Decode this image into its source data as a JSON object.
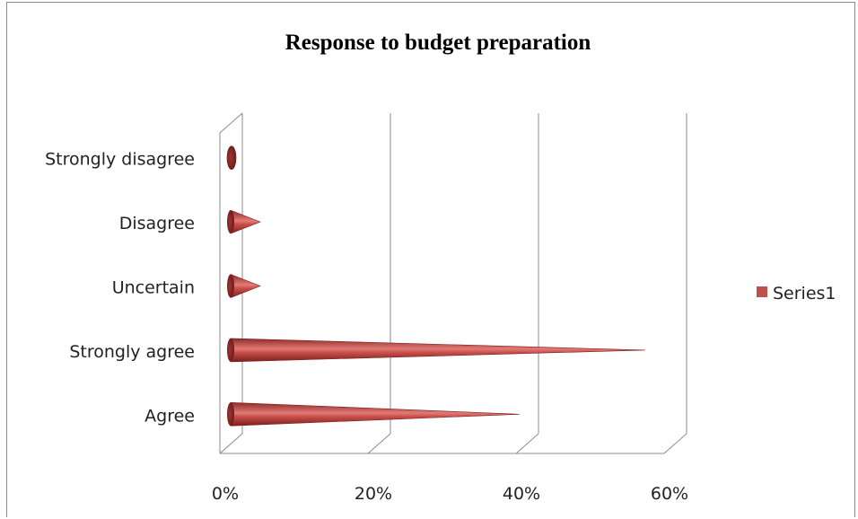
{
  "chart_data": {
    "type": "bar",
    "orientation": "horizontal",
    "style": "3d-cone",
    "title": "Response to budget preparation",
    "categories": [
      "Agree",
      "Strongly agree",
      "Uncertain",
      "Disagree",
      "Strongly disagree"
    ],
    "series": [
      {
        "name": "Series1",
        "values": [
          39,
          56,
          4,
          4,
          0.5
        ],
        "color": "#c0504d"
      }
    ],
    "xticks": [
      "0%",
      "20%",
      "40%",
      "60%"
    ],
    "xlim": [
      0,
      60
    ],
    "x_unit": "%",
    "grid": true,
    "legend_position": "right"
  }
}
